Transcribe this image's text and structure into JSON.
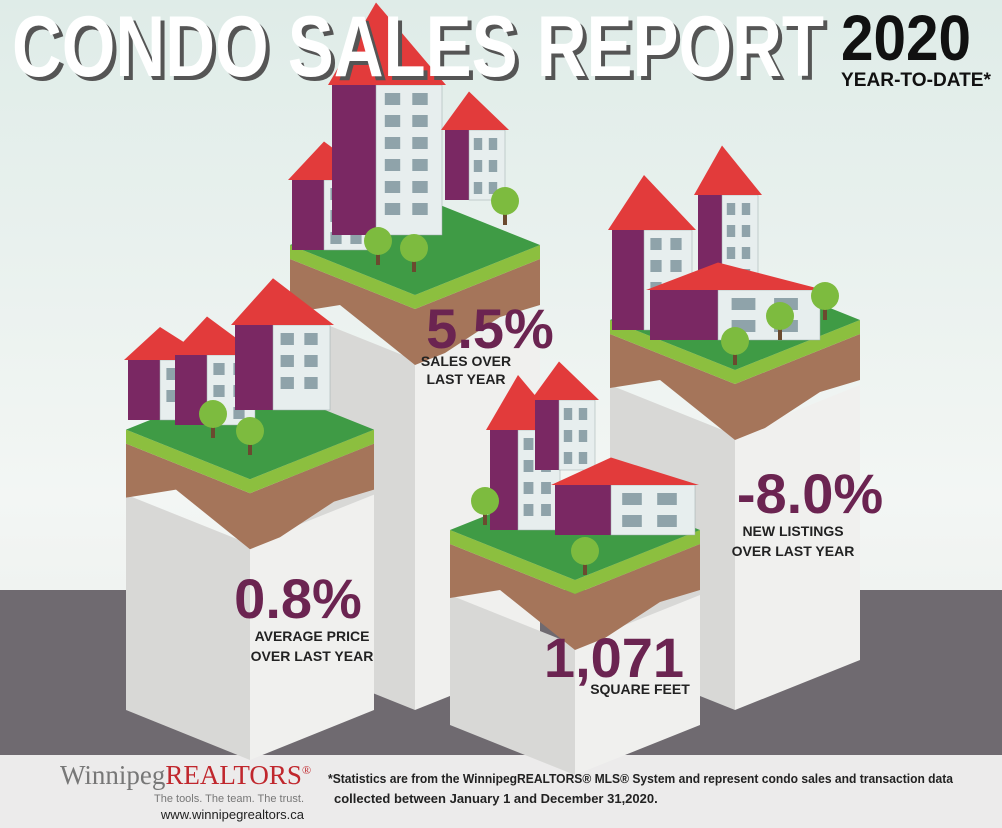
{
  "header": {
    "title": "CONDO SALES REPORT",
    "year": "2020",
    "subtitle": "YEAR-TO-DATE*"
  },
  "stats": [
    {
      "value": "5.5%",
      "label": [
        "SALES OVER",
        "LAST YEAR"
      ]
    },
    {
      "value": "0.8%",
      "label": [
        "AVERAGE PRICE",
        "OVER LAST YEAR"
      ]
    },
    {
      "value": "1,071",
      "label": [
        "SQUARE FEET"
      ]
    },
    {
      "value": "-8.0%",
      "label": [
        "NEW LISTINGS",
        "OVER LAST YEAR"
      ]
    }
  ],
  "footer": {
    "brand": [
      "Winnipeg",
      "REALTORS",
      "®"
    ],
    "tagline": "The tools. The team. The trust.",
    "url": "www.winnipegrealtors.ca",
    "note": [
      "*Statistics are from the WinnipegREALTORS® MLS® System and represent condo sales and transaction data",
      "collected between January 1 and December 31,2020."
    ]
  }
}
